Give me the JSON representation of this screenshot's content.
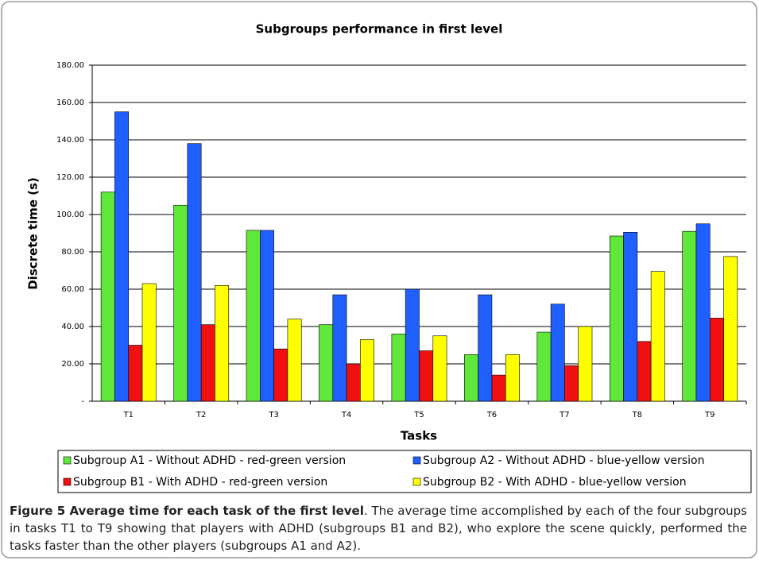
{
  "chart_data": {
    "type": "bar",
    "title": "Subgroups performance in first level",
    "xlabel": "Tasks",
    "ylabel": "Discrete time (s)",
    "categories": [
      "T1",
      "T2",
      "T3",
      "T4",
      "T5",
      "T6",
      "T7",
      "T8",
      "T9"
    ],
    "series": [
      {
        "name": "Subgroup A1 - Without ADHD - red-green version",
        "color": "#5fe83a",
        "values": [
          112,
          105,
          91.5,
          41,
          36,
          25,
          37,
          88.5,
          91
        ]
      },
      {
        "name": "Subgroup A2 - Without ADHD - blue-yellow version",
        "color": "#1f5fff",
        "values": [
          155,
          138,
          91.5,
          57,
          60,
          57,
          52,
          90.5,
          95
        ]
      },
      {
        "name": "Subgroup B1 - With ADHD - red-green version",
        "color": "#f01010",
        "values": [
          30,
          41,
          28,
          20,
          27,
          14,
          19,
          32,
          44.5
        ]
      },
      {
        "name": "Subgroup B2 - With ADHD - blue-yellow version",
        "color": "#ffff00",
        "values": [
          63,
          62,
          44,
          33,
          35,
          25,
          40,
          69.5,
          77.5
        ]
      }
    ],
    "ylim": [
      0,
      180
    ],
    "yticks": [
      {
        "value": 0,
        "label": "-"
      },
      {
        "value": 20,
        "label": "20.00"
      },
      {
        "value": 40,
        "label": "40.00"
      },
      {
        "value": 60,
        "label": "60.00"
      },
      {
        "value": 80,
        "label": "80.00"
      },
      {
        "value": 100,
        "label": "100.00"
      },
      {
        "value": 120,
        "label": "120.00"
      },
      {
        "value": 140,
        "label": "140.00"
      },
      {
        "value": 160,
        "label": "160.00"
      },
      {
        "value": 180,
        "label": "180.00"
      }
    ],
    "grid": true,
    "legend": "bottom",
    "caption": {
      "title": "Figure 5 Average time for each task of the first level",
      "text": ". The average time accomplished by each of the four subgroups in tasks T1 to T9 showing that players with ADHD (subgroups B1 and B2), who explore the scene quickly, performed the tasks faster than the other players (subgroups A1 and A2)."
    }
  }
}
